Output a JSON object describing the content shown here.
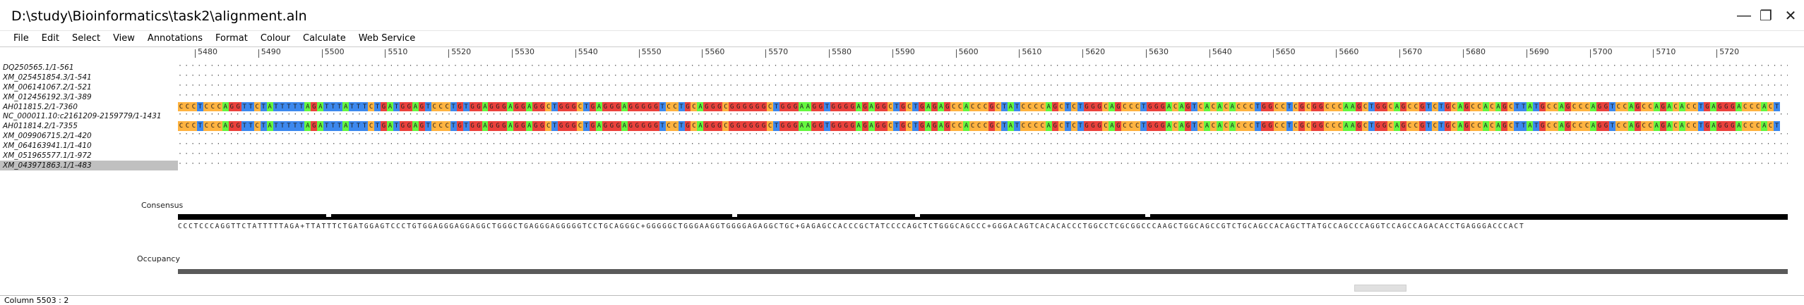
{
  "window": {
    "title": "D:\\study\\Bioinformatics\\task2\\alignment.aln",
    "minimize": "—",
    "maximize": "❐",
    "close": "✕"
  },
  "menu": [
    "File",
    "Edit",
    "Select",
    "View",
    "Annotations",
    "Format",
    "Colour",
    "Calculate",
    "Web Service"
  ],
  "ruler": [
    "5480",
    "5490",
    "5500",
    "5510",
    "5520",
    "5530",
    "5540",
    "5550",
    "5560",
    "5570",
    "5580",
    "5590",
    "5600",
    "5610",
    "5620",
    "5630",
    "5640",
    "5650",
    "5660",
    "5670",
    "5680",
    "5690",
    "5700",
    "5710",
    "5720"
  ],
  "sequences": [
    {
      "name": "DQ250565.1/1-561",
      "type": "gap"
    },
    {
      "name": "XM_025451854.3/1-541",
      "type": "gap"
    },
    {
      "name": "XM_006141067.2/1-521",
      "type": "gap"
    },
    {
      "name": "XM_012456192.3/1-389",
      "type": "gap"
    },
    {
      "name": "AH011815.2/1-7360",
      "type": "seq"
    },
    {
      "name": "NC_000011.10:c2161209-2159779/1-1431",
      "type": "gap"
    },
    {
      "name": "AH011814.2/1-7355",
      "type": "seq"
    },
    {
      "name": "XM_009906715.2/1-420",
      "type": "gap"
    },
    {
      "name": "XM_064163941.1/1-410",
      "type": "gap"
    },
    {
      "name": "XM_051965577.1/1-972",
      "type": "gap"
    },
    {
      "name": "XM_043971863.1/1-483",
      "type": "gap",
      "selected": true
    }
  ],
  "sequence_residues": "CCCTCCCAGGTTCTATTTTTAGATTTATTTCTGATGGAGTCCCTGTGGAGGGAGGAGGCTGGGCTGAGGGAGGGGGTCCTGCAGGGCGGGGGGCTGGGAAGGTGGGGAGAGGCTGCTGAGAGCCACCCGCTATCCCCAGCTCTGGGCAGCCCTGGGACAGTCACACACCCTGGCCTCGCGGCCCAAGCTGGCAGCCGTCTGCAGCCACAGCTTATGCCAGCCCAGGTCCAGCCAGACACCTGAGGGACCCACT",
  "gap_row": "··············································································································································································································································································································································",
  "annotations": {
    "consensus_label": "Consensus",
    "occupancy_label": "Occupancy",
    "consensus_sequence": "CCCTCCCAGGTTCTATTTTTAGA+TTATTTCTGATGGAGTCCCTGTGGAGGGAGGAGGCTGGGCTGAGGGAGGGGGTCCTGCAGGGC+GGGGGCTGGGAAGGTGGGGAGAGGCTGC+GAGAGCCACCCGCTATCCCCAGCTCTGGGCAGCCC+GGGACAGTCACACACCCTGGCCTCGCGGCCCAAGCTGGCAGCCGTCTGCAGCCACAGCTTATGCCAGCCCAGGTCCAGCCAGACACCTGAGGGACCCACT"
  },
  "status": "Column 5503 : 2",
  "colors": {
    "A": "#64f73f",
    "C": "#ffb340",
    "G": "#eb413c",
    "T": "#3c88ee"
  }
}
